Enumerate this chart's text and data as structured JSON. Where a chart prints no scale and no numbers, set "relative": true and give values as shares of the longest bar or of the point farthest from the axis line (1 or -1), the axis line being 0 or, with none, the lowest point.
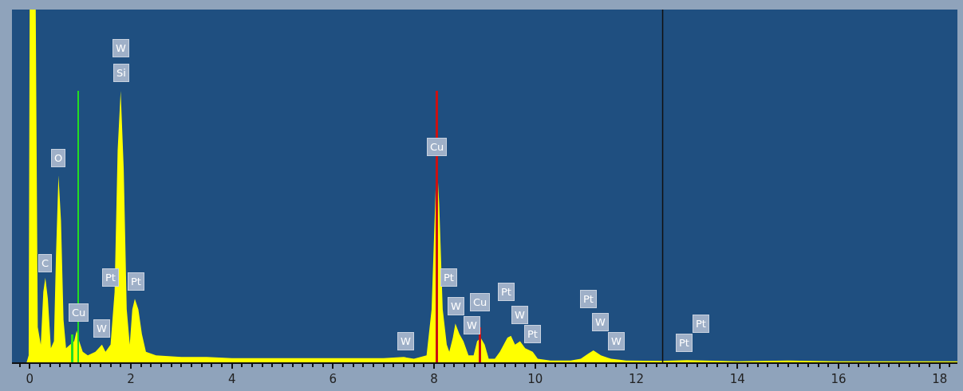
{
  "chart_data": {
    "type": "area",
    "relative": true,
    "tick_labels": "x",
    "legend": false,
    "xlim": [
      -0.35,
      18.35
    ],
    "xticks": [
      0,
      2,
      4,
      6,
      8,
      10,
      12,
      14,
      16,
      18
    ],
    "series": [
      {
        "color": "#ffff00",
        "x": [
          -0.06,
          -0.02,
          0.0,
          0.12,
          0.16,
          0.22,
          0.27,
          0.31,
          0.36,
          0.42,
          0.48,
          0.52,
          0.57,
          0.62,
          0.67,
          0.72,
          0.8,
          0.88,
          0.93,
          0.98,
          1.05,
          1.15,
          1.3,
          1.43,
          1.5,
          1.6,
          1.68,
          1.74,
          1.8,
          1.86,
          1.92,
          1.98,
          2.03,
          2.08,
          2.15,
          2.22,
          2.3,
          2.5,
          3,
          3.5,
          4,
          5,
          6,
          7,
          7.4,
          7.6,
          7.85,
          7.95,
          8.02,
          8.05,
          8.1,
          8.17,
          8.25,
          8.3,
          8.37,
          8.42,
          8.5,
          8.58,
          8.68,
          8.78,
          8.85,
          8.92,
          9.0,
          9.08,
          9.2,
          9.3,
          9.45,
          9.52,
          9.6,
          9.7,
          9.8,
          9.95,
          10.05,
          10.3,
          10.7,
          10.9,
          11.05,
          11.15,
          11.3,
          11.5,
          11.8,
          12.5,
          13,
          14,
          15,
          16,
          17,
          18,
          18.35
        ],
        "values": [
          0,
          0.02,
          1,
          1,
          0.1,
          0.05,
          0.2,
          0.24,
          0.18,
          0.04,
          0.06,
          0.3,
          0.53,
          0.4,
          0.12,
          0.04,
          0.05,
          0.06,
          0.09,
          0.06,
          0.03,
          0.02,
          0.03,
          0.05,
          0.03,
          0.05,
          0.2,
          0.6,
          0.77,
          0.55,
          0.15,
          0.05,
          0.15,
          0.18,
          0.15,
          0.08,
          0.03,
          0.02,
          0.015,
          0.015,
          0.012,
          0.012,
          0.012,
          0.012,
          0.015,
          0.01,
          0.02,
          0.15,
          0.45,
          0.58,
          0.45,
          0.15,
          0.05,
          0.03,
          0.07,
          0.11,
          0.08,
          0.06,
          0.02,
          0.02,
          0.06,
          0.07,
          0.05,
          0.01,
          0.01,
          0.03,
          0.07,
          0.075,
          0.05,
          0.06,
          0.04,
          0.03,
          0.01,
          0.005,
          0.005,
          0.01,
          0.025,
          0.034,
          0.02,
          0.01,
          0.005,
          0.004,
          0.006,
          0.003,
          0.005,
          0.003,
          0.003,
          0.003,
          0.003
        ]
      },
      {
        "type": "bar",
        "color": "#22dd22",
        "x": [
          0.84,
          0.96
        ],
        "values": [
          0.08,
          0.77
        ]
      },
      {
        "type": "bar",
        "color": "#cc1111",
        "x": [
          8.05,
          8.91
        ],
        "values": [
          0.77,
          0.1
        ]
      }
    ],
    "ref_lines": [
      {
        "axis": "x",
        "value": 12.52,
        "color": "#111111"
      }
    ],
    "annotations": [
      {
        "text": "W",
        "x": 1.81,
        "y": 0.89
      },
      {
        "text": "Si",
        "x": 1.81,
        "y": 0.82
      },
      {
        "text": "O",
        "x": 0.57,
        "y": 0.58
      },
      {
        "text": "C",
        "x": 0.31,
        "y": 0.28
      },
      {
        "text": "Pt",
        "x": 1.6,
        "y": 0.24
      },
      {
        "text": "Pt",
        "x": 2.1,
        "y": 0.23
      },
      {
        "text": "Cu",
        "x": 0.96,
        "y": 0.14
      },
      {
        "text": "W",
        "x": 1.43,
        "y": 0.095
      },
      {
        "text": "W",
        "x": 7.44,
        "y": 0.06
      },
      {
        "text": "Cu",
        "x": 8.05,
        "y": 0.61
      },
      {
        "text": "Pt",
        "x": 8.29,
        "y": 0.24
      },
      {
        "text": "W",
        "x": 8.43,
        "y": 0.16
      },
      {
        "text": "W",
        "x": 8.74,
        "y": 0.105
      },
      {
        "text": "Cu",
        "x": 8.9,
        "y": 0.17
      },
      {
        "text": "Pt",
        "x": 9.43,
        "y": 0.2
      },
      {
        "text": "W",
        "x": 9.7,
        "y": 0.135
      },
      {
        "text": "Pt",
        "x": 9.95,
        "y": 0.08
      },
      {
        "text": "Pt",
        "x": 11.05,
        "y": 0.18
      },
      {
        "text": "W",
        "x": 11.29,
        "y": 0.115
      },
      {
        "text": "W",
        "x": 11.6,
        "y": 0.06
      },
      {
        "text": "Pt",
        "x": 12.94,
        "y": 0.056
      },
      {
        "text": "Pt",
        "x": 13.27,
        "y": 0.11
      }
    ]
  }
}
